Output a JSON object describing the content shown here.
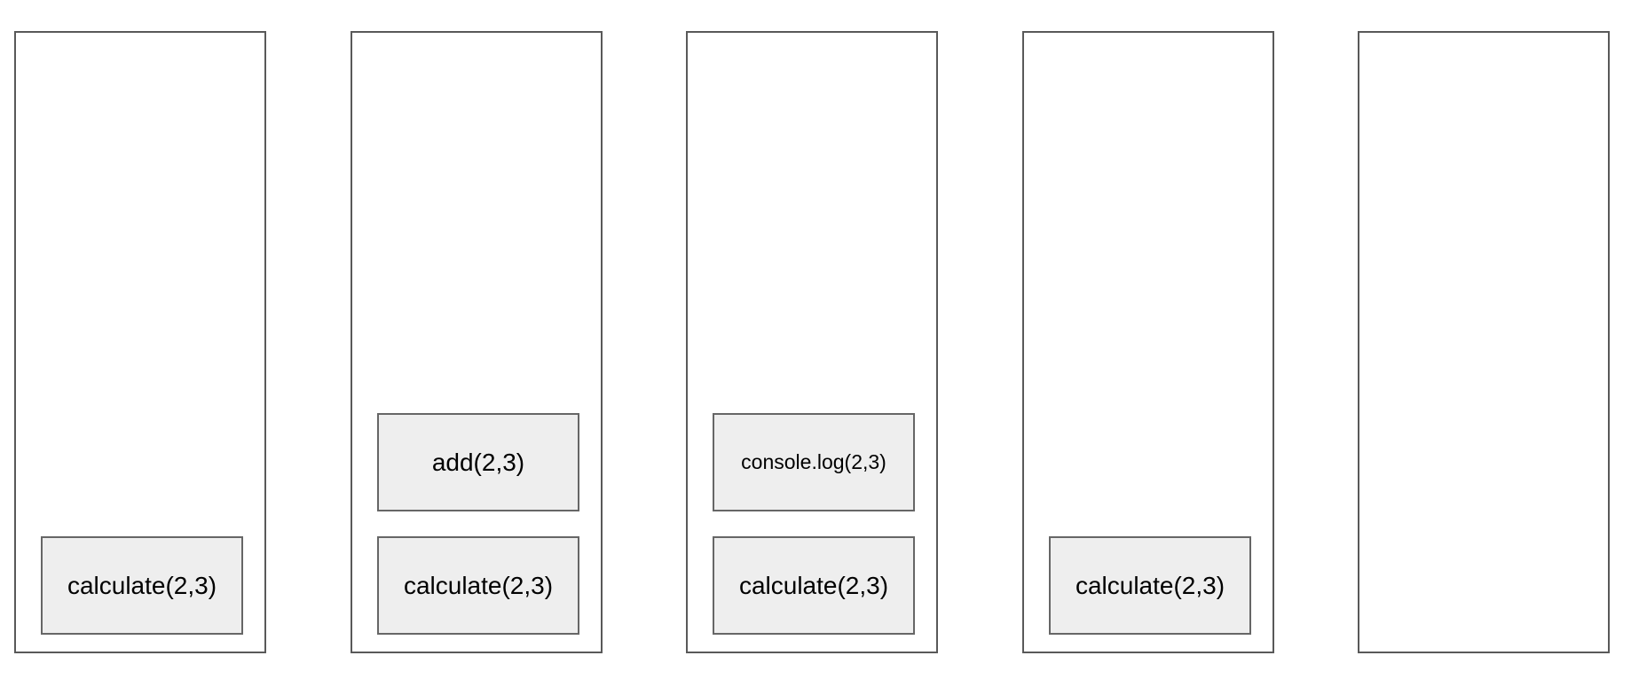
{
  "stacks": [
    {
      "frames": [
        {
          "label": "calculate(2,3)"
        }
      ]
    },
    {
      "frames": [
        {
          "label": "calculate(2,3)"
        },
        {
          "label": "add(2,3)"
        }
      ]
    },
    {
      "frames": [
        {
          "label": "calculate(2,3)"
        },
        {
          "label": "console.log(2,3)"
        }
      ]
    },
    {
      "frames": [
        {
          "label": "calculate(2,3)"
        }
      ]
    },
    {
      "frames": []
    }
  ],
  "colors": {
    "frame_fill": "#eeeeee",
    "frame_border": "#666666",
    "stack_border": "#595959"
  }
}
